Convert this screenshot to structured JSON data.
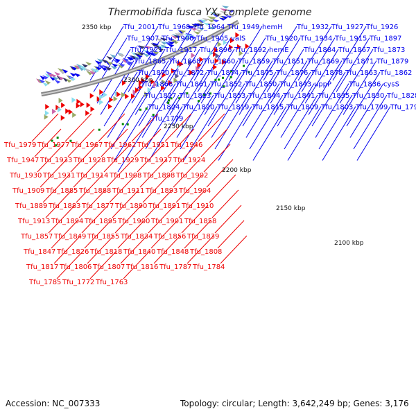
{
  "title": "Thermobifida fusca YX, complete genome",
  "footer": {
    "accession": "Accession: NC_007333",
    "summary": "Topology: circular; Length: 3,642,249 bp; Genes: 3,176"
  },
  "colors": {
    "forward_strand": "#0000ee",
    "reverse_strand": "#ee0000",
    "backbone": "#888888",
    "tick": "#008800"
  },
  "scale_ticks": [
    "2350 kbp",
    "2300 kbp",
    "2250 kbp",
    "2200 kbp",
    "2150 kbp",
    "2100 kbp"
  ],
  "forward_labels": [
    "Tfu_2001",
    "Tfu_1968",
    "Tfu_1964",
    "Tfu_1949",
    "hemH",
    "Tfu_1932",
    "Tfu_1927",
    "Tfu_1926",
    "Tfu_1907",
    "Tfu_1906",
    "Tfu_1905",
    "valS",
    "Tfu_1920",
    "Tfu_1934",
    "Tfu_1915",
    "Tfu_1897",
    "Tfu_1921",
    "Tfu_1917",
    "Tfu_1896",
    "Tfu_1892",
    "hemE",
    "Tfu_1884",
    "Tfu_1867",
    "Tfu_1873",
    "Tfu_1865",
    "Tfu_1868",
    "Tfu_1860",
    "Tfu_1859",
    "Tfu_1851",
    "Tfu_1869",
    "Tfu_1871",
    "Tfu_1879",
    "Tfu_1870",
    "Tfu_1872",
    "Tfu_1874",
    "Tfu_1875",
    "Tfu_1876",
    "Tfu_1878",
    "Tfu_1863",
    "Tfu_1862",
    "Tfu_1866",
    "Tfu_1861",
    "Tfu_1852",
    "Tfu_1850",
    "Tfu_1843",
    "uppP",
    "Tfu_1836",
    "cysS",
    "Tfu_1827",
    "Tfu_1823",
    "Tfu_1853",
    "Tfu_1844",
    "Tfu_1841",
    "Tfu_1835",
    "Tfu_1830",
    "Tfu_1828",
    "Tfu_1824",
    "Tfu_1820",
    "Tfu_1819",
    "Tfu_1815",
    "Tfu_1809",
    "Tfu_1803",
    "Tfu_1799",
    "Tfu_1794",
    "Tfu_1779"
  ],
  "reverse_labels": [
    "Tfu_1979",
    "Tfu_1977",
    "Tfu_1967",
    "Tfu_1962",
    "Tfu_1951",
    "Tfu_1946",
    "Tfu_1947",
    "Tfu_1933",
    "Tfu_1928",
    "Tfu_1929",
    "Tfu_1937",
    "Tfu_1924",
    "Tfu_1930",
    "Tfu_1931",
    "Tfu_1914",
    "Tfu_1908",
    "Tfu_1898",
    "Tfu_1902",
    "Tfu_1909",
    "Tfu_1885",
    "Tfu_1888",
    "Tfu_1911",
    "Tfu_1893",
    "Tfu_1904",
    "Tfu_1889",
    "Tfu_1883",
    "Tfu_1877",
    "Tfu_1890",
    "Tfu_1891",
    "Tfu_1910",
    "Tfu_1913",
    "Tfu_1894",
    "Tfu_1895",
    "Tfu_1900",
    "Tfu_1901",
    "Tfu_1858",
    "Tfu_1857",
    "Tfu_1849",
    "Tfu_1855",
    "Tfu_1834",
    "Tfu_1856",
    "Tfu_1839",
    "Tfu_1847",
    "Tfu_1826",
    "Tfu_1818",
    "Tfu_1840",
    "Tfu_1848",
    "Tfu_1808",
    "Tfu_1817",
    "Tfu_1806",
    "Tfu_1807",
    "Tfu_1816",
    "Tfu_1787",
    "Tfu_1784",
    "Tfu_1785",
    "Tfu_1772",
    "Tfu_1763"
  ]
}
